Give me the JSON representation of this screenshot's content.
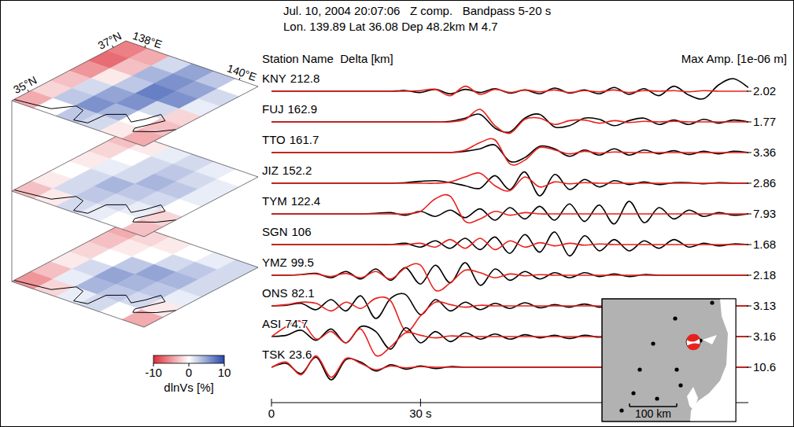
{
  "header": {
    "line1": "Jul. 10, 2004 20:07:06   Z comp.   Bandpass 5-20 s",
    "line2": "Lon. 139.89 Lat 36.08 Dep 48.2km M 4.7"
  },
  "columns": {
    "station": "Station Name  Delta [km]",
    "amp": "Max Amp. [1e-06 m]"
  },
  "chart_data": {
    "type": "waveform",
    "colors": [
      "#000000",
      "#e8211d"
    ],
    "x": [
      0,
      3,
      6,
      9,
      12,
      15,
      18,
      21,
      24,
      27,
      30,
      33,
      36,
      39,
      42,
      45,
      48,
      51,
      54,
      57,
      60,
      63,
      66,
      69,
      72,
      75,
      78,
      81,
      84,
      87,
      90,
      93,
      96
    ],
    "xlim": [
      0,
      96
    ],
    "xticks": [
      0,
      {
        "value": 30,
        "label": "30 s"
      }
    ],
    "stations": [
      {
        "name": "KNY",
        "delta": 212.8,
        "max_amp": 2.02,
        "observed": [
          0,
          0,
          0,
          0,
          0,
          0,
          0,
          0,
          0,
          0.05,
          -0.1,
          0.15,
          -0.2,
          0.15,
          -0.1,
          0.2,
          -0.15,
          0.1,
          -0.2,
          0.25,
          -0.15,
          0.1,
          -0.2,
          0.3,
          -0.25,
          0.2,
          -0.35,
          0.4,
          -0.3,
          -0.6,
          0.5,
          1.0,
          0.3
        ],
        "synthetic": [
          0,
          0,
          0,
          0,
          0,
          0,
          0,
          0,
          0,
          0,
          0.05,
          0.15,
          -0.35,
          0.4,
          -0.25,
          0.15,
          -0.1,
          0.1,
          -0.05,
          0.1,
          -0.1,
          0.05,
          -0.05,
          0.1,
          -0.1,
          0.05,
          0,
          0.05,
          -0.05,
          0.05,
          0,
          0,
          0
        ]
      },
      {
        "name": "FUJ",
        "delta": 162.9,
        "max_amp": 1.77,
        "observed": [
          0,
          0,
          0,
          0,
          0,
          0,
          0,
          0,
          0,
          0,
          0,
          0,
          0.05,
          0.3,
          0.6,
          -0.5,
          -0.8,
          0.3,
          0.6,
          -0.4,
          -0.3,
          0.3,
          0.2,
          -0.3,
          0.1,
          0.3,
          -0.2,
          0.15,
          -0.2,
          0.2,
          -0.1,
          0.15,
          0
        ],
        "synthetic": [
          0,
          0,
          0,
          0,
          0,
          0,
          0,
          0,
          0,
          0,
          0,
          0,
          0,
          0.2,
          1.0,
          -0.3,
          -0.9,
          0.2,
          0.3,
          -0.2,
          0.1,
          0.15,
          -0.1,
          0.1,
          -0.05,
          0.05,
          0,
          0.05,
          0,
          0,
          0,
          0,
          0
        ]
      },
      {
        "name": "TTO",
        "delta": 161.7,
        "max_amp": 3.36,
        "observed": [
          0,
          0,
          0,
          0,
          0,
          0,
          0,
          0,
          0,
          0,
          0,
          0,
          0,
          0.1,
          0.3,
          0.6,
          -0.7,
          -0.4,
          0.5,
          0.3,
          -0.3,
          0.2,
          -0.2,
          0.3,
          -0.2,
          0.2,
          -0.1,
          0.15,
          -0.15,
          0.1,
          -0.1,
          0.1,
          0
        ],
        "synthetic": [
          0,
          0,
          0,
          0,
          0,
          0,
          0,
          0,
          0,
          0,
          0,
          0,
          0,
          0.2,
          0.8,
          1.0,
          -0.9,
          -0.6,
          0.4,
          0.2,
          -0.1,
          0.1,
          -0.05,
          0.05,
          0,
          0,
          0,
          0,
          0,
          0,
          0,
          0,
          0
        ]
      },
      {
        "name": "JIZ",
        "delta": 152.2,
        "max_amp": 2.86,
        "observed": [
          0,
          0,
          0,
          0,
          0,
          0,
          0,
          0,
          0,
          0.05,
          0.15,
          0.2,
          0.05,
          -0.2,
          -0.4,
          0.6,
          -0.5,
          0.9,
          -1.0,
          0.7,
          -0.5,
          0.3,
          -0.3,
          0.2,
          -0.1,
          0.1,
          -0.1,
          0.05,
          0.05,
          -0.05,
          0.05,
          0,
          0
        ],
        "synthetic": [
          0,
          0,
          0,
          0,
          0,
          0,
          0,
          0,
          0,
          0,
          0,
          0,
          0.1,
          0.5,
          0.8,
          -0.2,
          -0.6,
          0.5,
          -0.3,
          0.1,
          -0.05,
          0.05,
          0,
          0,
          0,
          0,
          0,
          0,
          0,
          0,
          0,
          0,
          0
        ]
      },
      {
        "name": "TYM",
        "delta": 122.4,
        "max_amp": 7.93,
        "observed": [
          0,
          0,
          0,
          0,
          0,
          0,
          0,
          0.05,
          0.1,
          -0.1,
          0.2,
          -0.2,
          0.3,
          -0.3,
          0.4,
          -0.5,
          0.5,
          -0.4,
          0.6,
          -0.5,
          0.8,
          -0.6,
          0.7,
          -0.8,
          1.0,
          -0.7,
          0.5,
          -0.4,
          0.3,
          -0.2,
          0.1,
          -0.1,
          0
        ],
        "synthetic": [
          0,
          0,
          0,
          0,
          0,
          0,
          0,
          0,
          0,
          0,
          0.2,
          1.2,
          1.4,
          -0.6,
          -0.4,
          0.2,
          -0.1,
          0.1,
          0,
          0,
          0,
          0,
          0,
          0,
          0,
          0,
          0,
          0,
          0,
          0,
          0,
          0,
          0
        ]
      },
      {
        "name": "SGN",
        "delta": 106.0,
        "max_amp": 1.68,
        "observed": [
          0,
          0,
          0,
          0,
          0,
          0,
          0,
          0,
          0,
          0.1,
          -0.2,
          0.3,
          -0.3,
          0.5,
          -0.4,
          0.6,
          -0.7,
          0.8,
          -0.6,
          1.0,
          -0.9,
          0.7,
          -0.5,
          0.4,
          -0.5,
          0.3,
          -0.3,
          0.4,
          -0.2,
          0.1,
          -0.1,
          0.05,
          0
        ],
        "synthetic": [
          0,
          0,
          0,
          0,
          0,
          0,
          0,
          0,
          0,
          0,
          0.1,
          -0.2,
          0.4,
          -0.3,
          0.5,
          -0.4,
          0.3,
          -0.2,
          0.15,
          -0.1,
          0.1,
          -0.05,
          0.05,
          0,
          0,
          0,
          0,
          0,
          0,
          0,
          0,
          0,
          0
        ]
      },
      {
        "name": "YMZ",
        "delta": 99.5,
        "max_amp": 2.18,
        "observed": [
          0,
          0,
          0.05,
          0.15,
          -0.2,
          0.3,
          -0.3,
          0.5,
          -0.4,
          0.6,
          -0.7,
          0.8,
          -0.6,
          1.0,
          -0.8,
          0.5,
          -0.4,
          0.3,
          -0.3,
          0.2,
          -0.2,
          0.2,
          -0.1,
          0.1,
          -0.1,
          0.05,
          0,
          0,
          0,
          0,
          0,
          0,
          0
        ],
        "synthetic": [
          0,
          0,
          0.05,
          0.1,
          -0.1,
          0.15,
          -0.2,
          0.3,
          -0.3,
          0.6,
          0.8,
          -1.2,
          -0.6,
          0.4,
          0.2,
          -0.2,
          0.1,
          -0.05,
          0.05,
          0,
          0,
          0,
          0,
          0,
          0,
          0,
          0,
          0,
          0,
          0,
          0,
          0,
          0
        ]
      },
      {
        "name": "ONS",
        "delta": 82.1,
        "max_amp": 3.13,
        "observed": [
          0,
          0.05,
          0.2,
          -0.3,
          0.5,
          -0.4,
          0.8,
          -1.0,
          0.6,
          0.9,
          -0.7,
          0.5,
          -0.4,
          0.3,
          -0.3,
          0.2,
          -0.2,
          0.25,
          -0.15,
          0.1,
          -0.1,
          0.15,
          -0.1,
          0.1,
          -0.05,
          0.05,
          -0.05,
          0.05,
          0,
          0,
          0,
          0,
          0
        ],
        "synthetic": [
          0,
          0.1,
          0.3,
          0.2,
          -0.4,
          0.3,
          -0.2,
          0.6,
          0.4,
          -2.0,
          -0.8,
          0.3,
          0.1,
          -0.1,
          0.05,
          0,
          0,
          0,
          0,
          0,
          0,
          0,
          0,
          0,
          0,
          0,
          0,
          0,
          0,
          0,
          0,
          0,
          0
        ]
      },
      {
        "name": "ASI",
        "delta": 74.7,
        "max_amp": 3.16,
        "observed": [
          0,
          0.1,
          0.5,
          -0.3,
          0.6,
          -0.5,
          0.8,
          0.4,
          -1.0,
          0.7,
          -0.5,
          0.4,
          -0.4,
          0.3,
          -0.2,
          0.2,
          -0.2,
          0.15,
          -0.1,
          0.1,
          -0.15,
          0.1,
          -0.05,
          0.05,
          -0.05,
          0,
          0,
          0,
          0,
          0,
          0,
          0,
          0
        ],
        "synthetic": [
          0,
          0.8,
          1.2,
          -0.2,
          0.4,
          -0.5,
          0.6,
          -1.5,
          -0.8,
          0.3,
          0.1,
          -0.1,
          0.05,
          0,
          0,
          0,
          0,
          0,
          0,
          0,
          0,
          0,
          0,
          0,
          0,
          0,
          0,
          0,
          0,
          0,
          0,
          0,
          0
        ]
      },
      {
        "name": "TSK",
        "delta": 23.6,
        "max_amp": 10.6,
        "observed": [
          0,
          0.3,
          -0.5,
          0.8,
          -1.0,
          0.6,
          0.4,
          -0.3,
          0.2,
          -0.15,
          0.1,
          -0.1,
          0.05,
          0,
          0,
          0,
          0,
          0,
          0,
          0,
          0,
          0,
          0,
          0,
          0,
          0,
          0,
          0,
          0,
          0,
          0,
          0,
          0
        ],
        "synthetic": [
          0,
          0.4,
          -0.6,
          0.9,
          -0.8,
          0.7,
          0.3,
          -0.2,
          0.1,
          -0.05,
          0.05,
          0,
          0,
          0,
          0,
          0,
          0,
          0,
          0,
          0,
          0,
          0,
          0,
          0,
          0,
          0,
          0,
          0,
          0,
          0,
          0,
          0,
          0
        ]
      }
    ]
  },
  "tomography": {
    "lonlim": [
      137.6,
      140.4
    ],
    "latlim": [
      34.6,
      37.3
    ],
    "lonticks": [
      {
        "value": 138,
        "label": "138°E"
      },
      {
        "value": 140,
        "label": "140°E"
      }
    ],
    "latticks": [
      {
        "value": 35,
        "label": "35°N"
      },
      {
        "value": 37,
        "label": "37°N"
      }
    ],
    "layers": [
      [
        [
          -6,
          -4,
          2,
          5,
          3,
          0
        ],
        [
          -7,
          -3,
          4,
          6,
          5,
          2
        ],
        [
          -5,
          -1,
          3,
          7,
          6,
          1
        ],
        [
          -3,
          2,
          5,
          6,
          2,
          -2
        ],
        [
          -2,
          3,
          6,
          4,
          0,
          -3
        ],
        [
          -4,
          0,
          3,
          2,
          -1,
          -4
        ]
      ],
      [
        [
          -3,
          -1,
          1,
          2,
          1,
          0
        ],
        [
          -2,
          0,
          2,
          3,
          2,
          1
        ],
        [
          -1,
          1,
          2,
          4,
          3,
          1
        ],
        [
          0,
          2,
          4,
          3,
          2,
          0
        ],
        [
          -1,
          2,
          3,
          2,
          1,
          -2
        ],
        [
          -3,
          -1,
          2,
          1,
          0,
          -3
        ]
      ],
      [
        [
          -4,
          -2,
          -1,
          0,
          1,
          2
        ],
        [
          -3,
          -1,
          0,
          2,
          3,
          2
        ],
        [
          -2,
          0,
          3,
          5,
          4,
          2
        ],
        [
          -1,
          2,
          5,
          4,
          3,
          1
        ],
        [
          -3,
          1,
          4,
          3,
          2,
          -1
        ],
        [
          -5,
          -2,
          1,
          2,
          0,
          -4
        ]
      ]
    ],
    "colorbar": {
      "range": [
        -10,
        10
      ],
      "ticks": [
        -10,
        0,
        10
      ],
      "label": "dlnVs [%]"
    }
  },
  "inset": {
    "scale_label": "100 km"
  }
}
